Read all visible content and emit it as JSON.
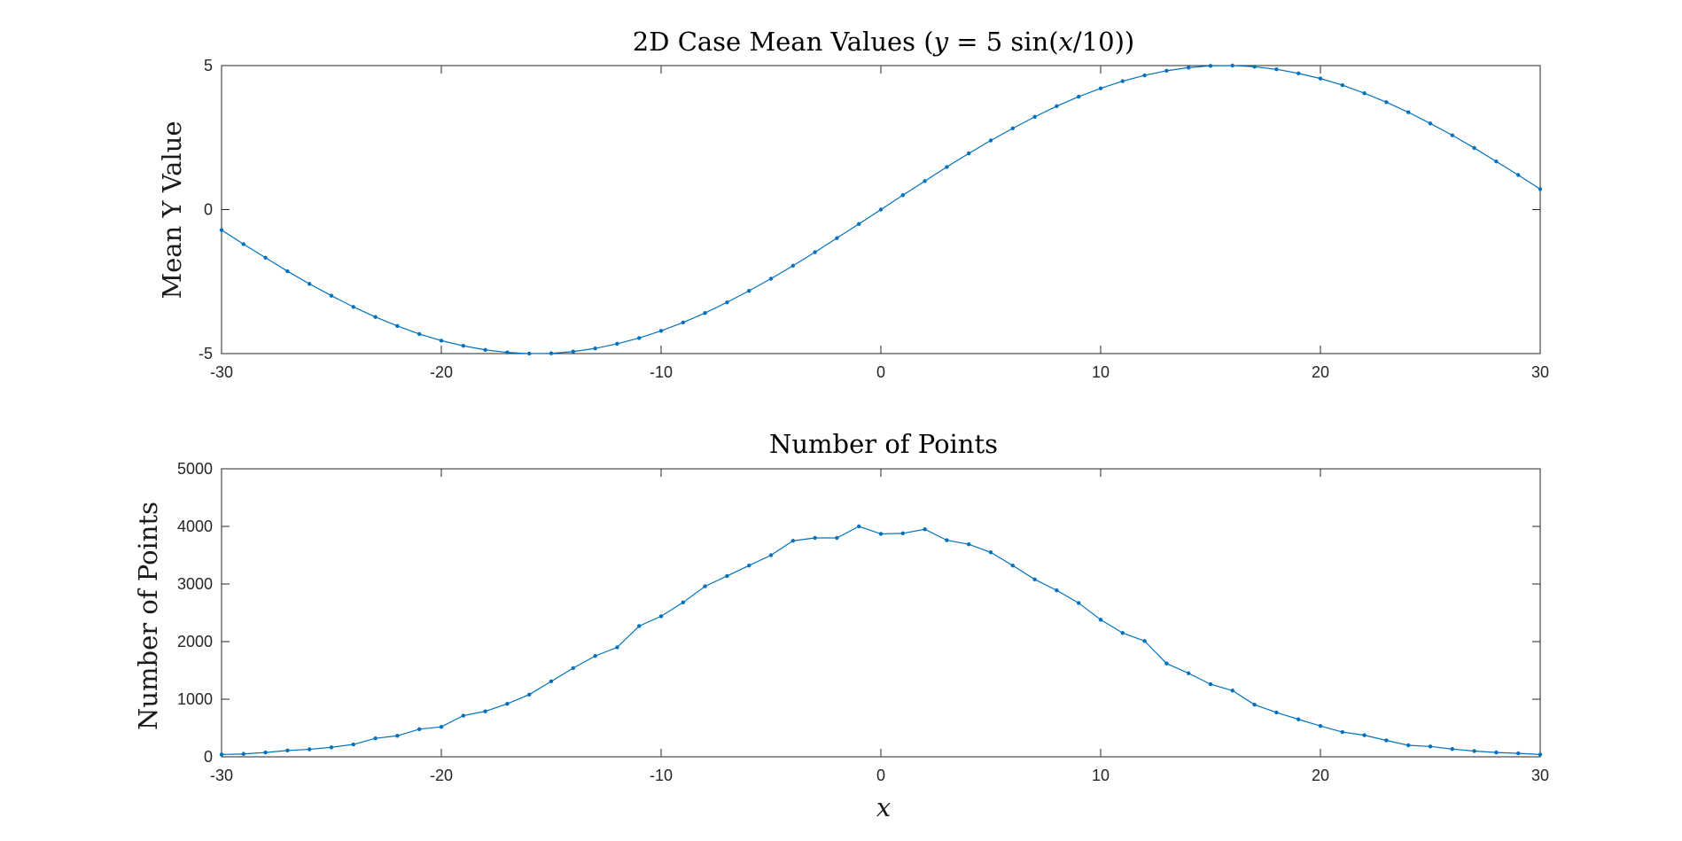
{
  "colors": {
    "series": "#0072BD",
    "axis": "#262626"
  },
  "chart_data": [
    {
      "type": "line",
      "title": "2D Case Mean Values (y = 5 sin(x/10))",
      "title_parts": {
        "prefix": "2D Case Mean Values (",
        "y": "y",
        "eq": " = 5 sin(",
        "x": "x",
        "suffix": "/10))"
      },
      "xlabel": "",
      "ylabel": "Mean Y Value",
      "xlim": [
        -30,
        30
      ],
      "ylim": [
        -5,
        5
      ],
      "xticks": [
        -30,
        -20,
        -10,
        0,
        10,
        20,
        30
      ],
      "yticks": [
        -5,
        0,
        5
      ],
      "xtick_labels": [
        "-30",
        "-20",
        "-10",
        "0",
        "10",
        "20",
        "30"
      ],
      "ytick_labels": [
        "-5",
        "0",
        "5"
      ],
      "grid": false,
      "x": [
        -30,
        -29,
        -28,
        -27,
        -26,
        -25,
        -24,
        -23,
        -22,
        -21,
        -20,
        -19,
        -18,
        -17,
        -16,
        -15,
        -14,
        -13,
        -12,
        -11,
        -10,
        -9,
        -8,
        -7,
        -6,
        -5,
        -4,
        -3,
        -2,
        -1,
        0,
        1,
        2,
        3,
        4,
        5,
        6,
        7,
        8,
        9,
        10,
        11,
        12,
        13,
        14,
        15,
        16,
        17,
        18,
        19,
        20,
        21,
        22,
        23,
        24,
        25,
        26,
        27,
        28,
        29,
        30
      ],
      "series": [
        {
          "values": [
            -0.71,
            -1.2,
            -1.67,
            -2.14,
            -2.58,
            -2.99,
            -3.38,
            -3.73,
            -4.04,
            -4.32,
            -4.55,
            -4.73,
            -4.87,
            -4.96,
            -5.0,
            -4.99,
            -4.93,
            -4.82,
            -4.66,
            -4.46,
            -4.21,
            -3.92,
            -3.59,
            -3.22,
            -2.82,
            -2.4,
            -1.95,
            -1.48,
            -0.99,
            -0.5,
            0.0,
            0.5,
            0.99,
            1.48,
            1.95,
            2.4,
            2.82,
            3.22,
            3.59,
            3.92,
            4.21,
            4.46,
            4.66,
            4.82,
            4.93,
            4.99,
            5.0,
            4.96,
            4.87,
            4.73,
            4.55,
            4.32,
            4.04,
            3.73,
            3.38,
            2.99,
            2.58,
            2.14,
            1.67,
            1.2,
            0.71
          ]
        }
      ]
    },
    {
      "type": "line",
      "title": "Number of Points",
      "xlabel": "x",
      "ylabel": "Number of Points",
      "xlim": [
        -30,
        30
      ],
      "ylim": [
        0,
        5000
      ],
      "xticks": [
        -30,
        -20,
        -10,
        0,
        10,
        20,
        30
      ],
      "yticks": [
        0,
        1000,
        2000,
        3000,
        4000,
        5000
      ],
      "xtick_labels": [
        "-30",
        "-20",
        "-10",
        "0",
        "10",
        "20",
        "30"
      ],
      "ytick_labels": [
        "0",
        "1000",
        "2000",
        "3000",
        "4000",
        "5000"
      ],
      "grid": false,
      "x": [
        -30,
        -29,
        -28,
        -27,
        -26,
        -25,
        -24,
        -23,
        -22,
        -21,
        -20,
        -19,
        -18,
        -17,
        -16,
        -15,
        -14,
        -13,
        -12,
        -11,
        -10,
        -9,
        -8,
        -7,
        -6,
        -5,
        -4,
        -3,
        -2,
        -1,
        0,
        1,
        2,
        3,
        4,
        5,
        6,
        7,
        8,
        9,
        10,
        11,
        12,
        13,
        14,
        15,
        16,
        17,
        18,
        19,
        20,
        21,
        22,
        23,
        24,
        25,
        26,
        27,
        28,
        29,
        30
      ],
      "series": [
        {
          "values": [
            40,
            50,
            75,
            110,
            130,
            165,
            215,
            320,
            365,
            480,
            520,
            715,
            790,
            920,
            1080,
            1310,
            1540,
            1750,
            1900,
            2270,
            2440,
            2680,
            2960,
            3140,
            3320,
            3500,
            3750,
            3800,
            3800,
            4000,
            3870,
            3880,
            3950,
            3760,
            3690,
            3550,
            3320,
            3080,
            2890,
            2670,
            2380,
            2150,
            2010,
            1620,
            1450,
            1260,
            1150,
            905,
            770,
            650,
            535,
            430,
            375,
            285,
            200,
            180,
            135,
            100,
            75,
            60,
            40
          ]
        }
      ]
    }
  ]
}
